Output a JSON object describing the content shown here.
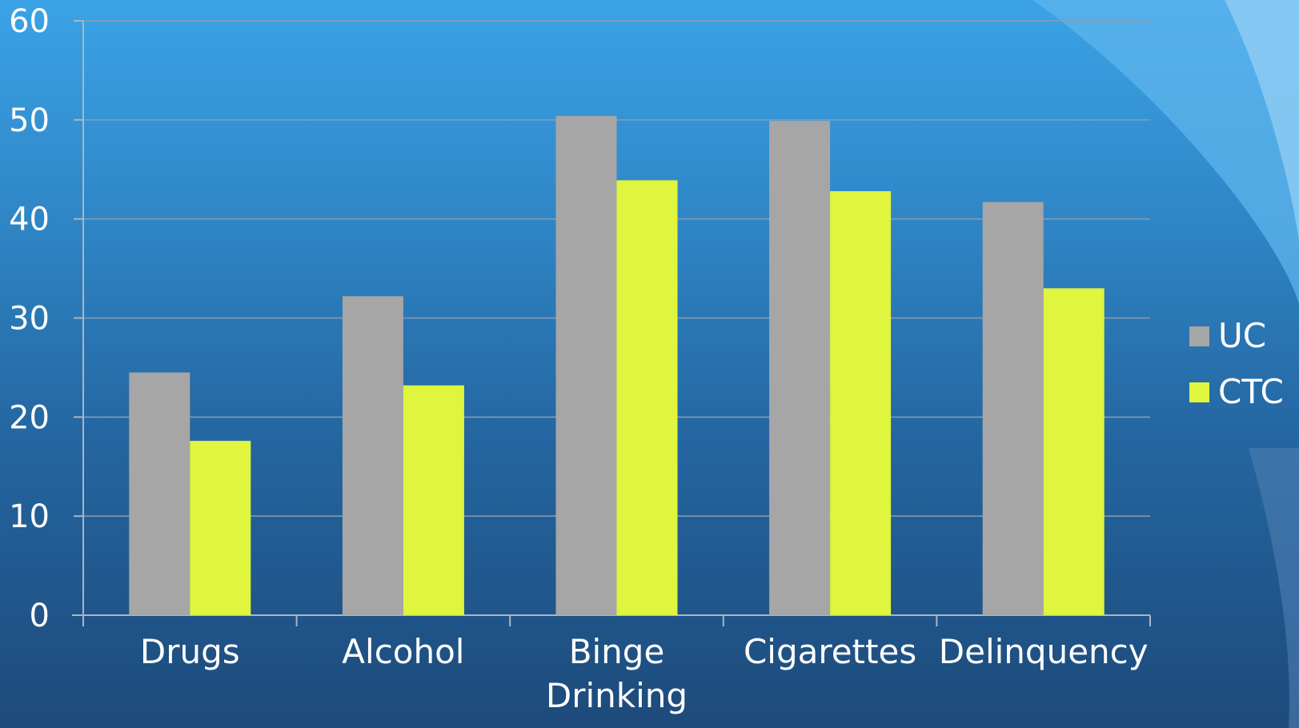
{
  "chart_data": {
    "type": "bar",
    "categories": [
      "Drugs",
      "Alcohol",
      "Binge Drinking",
      "Cigarettes",
      "Delinquency"
    ],
    "category_lines": [
      [
        "Drugs"
      ],
      [
        "Alcohol"
      ],
      [
        "Binge",
        "Drinking"
      ],
      [
        "Cigarettes"
      ],
      [
        "Delinquency"
      ]
    ],
    "series": [
      {
        "name": "UC",
        "color": "#a6a6a6",
        "values": [
          24.5,
          32.2,
          50.4,
          49.9,
          41.7
        ]
      },
      {
        "name": "CTC",
        "color": "#dff53e",
        "values": [
          17.6,
          23.2,
          43.9,
          42.8,
          33.0
        ]
      }
    ],
    "ylim": [
      0,
      60
    ],
    "yticks": [
      0,
      10,
      20,
      30,
      40,
      50,
      60
    ],
    "grid": true,
    "legend_position": "right",
    "title": "",
    "xlabel": "",
    "ylabel": ""
  }
}
